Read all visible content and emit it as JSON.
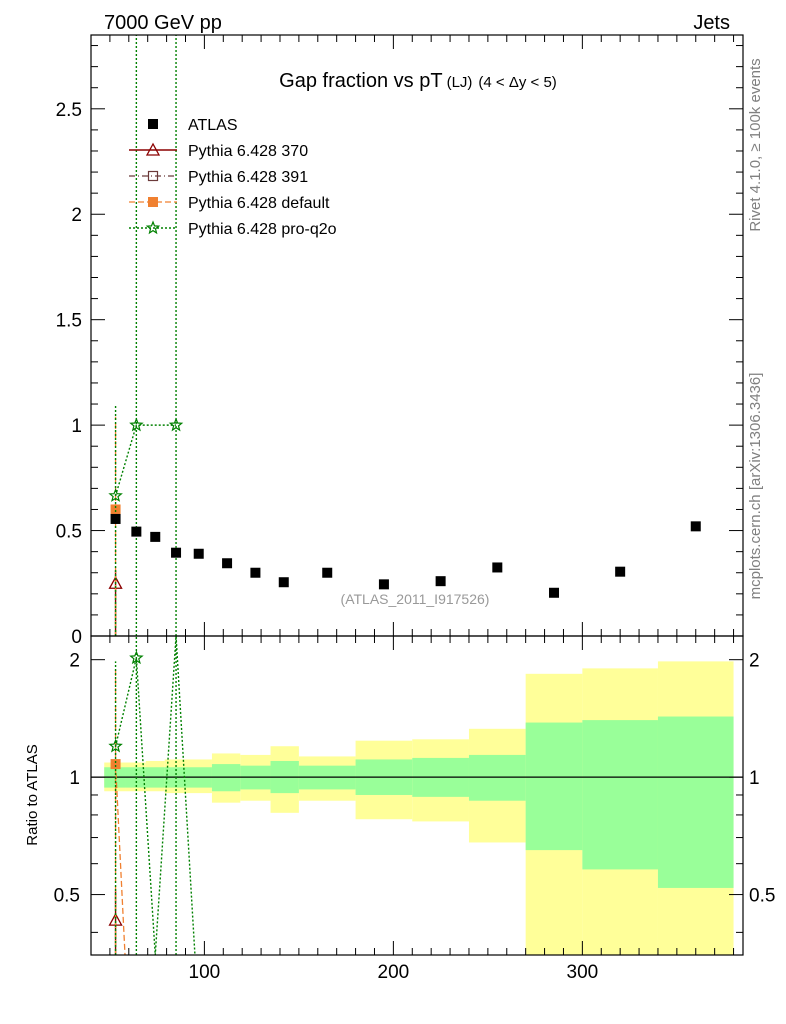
{
  "header": {
    "left": "7000 GeV pp",
    "right": "Jets"
  },
  "side_labels": {
    "top": "Rivet 4.1.0, ≥ 100k events",
    "bottom": "mcplots.cern.ch [arXiv:1306.3436]"
  },
  "chart_data": [
    {
      "type": "scatter",
      "title_main": "Gap fraction vs pT",
      "title_sub": "(LJ)",
      "title_cond": "(4 < Δy < 5)",
      "watermark": "(ATLAS_2011_I917526)",
      "xlim": [
        40,
        385
      ],
      "ylim": [
        0,
        2.85
      ],
      "yticks": [
        0,
        0.5,
        1,
        1.5,
        2,
        2.5
      ],
      "ytick_labels": [
        "0",
        "0.5",
        "1",
        "1.5",
        "2",
        "2.5"
      ],
      "legend_position": "top-left",
      "series": [
        {
          "name": "ATLAS",
          "marker": "square",
          "color": "#000000",
          "x": [
            53,
            64,
            74,
            85,
            97,
            112,
            127,
            142,
            165,
            195,
            225,
            255,
            285,
            320,
            360
          ],
          "y": [
            0.555,
            0.495,
            0.47,
            0.395,
            0.39,
            0.345,
            0.3,
            0.255,
            0.3,
            0.245,
            0.26,
            0.325,
            0.205,
            0.305,
            0.52
          ]
        },
        {
          "name": "Pythia 6.428 370",
          "marker": "triangle-open",
          "color": "#8b0000",
          "x": [
            53
          ],
          "y": [
            0.25
          ],
          "yerr_low": [
            0.25
          ],
          "yerr_high": [
            0.06
          ]
        },
        {
          "name": "Pythia 6.428 391",
          "marker": "square-open",
          "color": "#6b3a3a",
          "x": [],
          "y": []
        },
        {
          "name": "Pythia 6.428 default",
          "marker": "square",
          "color": "#f08030",
          "x": [
            53
          ],
          "y": [
            0.6
          ],
          "yerr_low": [
            0.6
          ],
          "yerr_high": [
            0.44
          ]
        },
        {
          "name": "Pythia 6.428 pro-q2o",
          "marker": "star",
          "color": "#008000",
          "x": [
            53,
            64,
            85
          ],
          "y": [
            0.665,
            1.0,
            1.0
          ],
          "yerr_low": [
            0.665,
            1.0,
            1.0
          ],
          "yerr_high": [
            0.43,
            1.85,
            1.85
          ]
        }
      ]
    },
    {
      "type": "ratio",
      "ylabel": "Ratio to ATLAS",
      "xlabel": "",
      "xlim": [
        40,
        385
      ],
      "ylim": [
        0.35,
        2.3
      ],
      "xticks": [
        100,
        200,
        300
      ],
      "xtick_labels": [
        "100",
        "200",
        "300"
      ],
      "yticks": [
        0.5,
        1,
        2
      ],
      "ytick_labels": [
        "0.5",
        "1",
        "2"
      ],
      "bin_edges": [
        47,
        58,
        69,
        79,
        90,
        104,
        119,
        135,
        150,
        180,
        210,
        240,
        270,
        300,
        340,
        380
      ],
      "band_stat": {
        "low": [
          0.94,
          0.94,
          0.94,
          0.94,
          0.94,
          0.92,
          0.93,
          0.91,
          0.93,
          0.9,
          0.89,
          0.87,
          0.65,
          0.58,
          0.52
        ],
        "high": [
          1.06,
          1.06,
          1.06,
          1.06,
          1.06,
          1.08,
          1.07,
          1.1,
          1.07,
          1.11,
          1.12,
          1.14,
          1.38,
          1.4,
          1.43
        ]
      },
      "band_total": {
        "low": [
          0.92,
          0.92,
          0.92,
          0.91,
          0.91,
          0.86,
          0.87,
          0.81,
          0.87,
          0.78,
          0.77,
          0.68,
          0.35,
          0.35,
          0.35
        ],
        "high": [
          1.09,
          1.09,
          1.1,
          1.11,
          1.11,
          1.15,
          1.14,
          1.2,
          1.13,
          1.24,
          1.25,
          1.33,
          1.84,
          1.9,
          1.98
        ]
      },
      "series": [
        {
          "name": "Pythia 6.428 370",
          "color": "#8b0000",
          "x": [
            53
          ],
          "y": [
            0.43
          ],
          "yerr_low": [
            0.43
          ],
          "yerr_high": [
            0.08
          ]
        },
        {
          "name": "Pythia 6.428 default",
          "color": "#f08030",
          "x": [
            53,
            58
          ],
          "y": [
            1.08,
            0.35
          ],
          "yerr_low": [
            1.08,
            0.0
          ],
          "yerr_high": [
            0.8,
            0.0
          ]
        },
        {
          "name": "Pythia 6.428 pro-q2o",
          "color": "#008000",
          "x": [
            53,
            64,
            74,
            85,
            95
          ],
          "y": [
            1.2,
            2.02,
            0.35,
            2.3,
            0.35
          ],
          "yerr_low": [
            1.2,
            2.02,
            0.0,
            2.3,
            0.0
          ],
          "yerr_high": [
            0.78,
            0.6,
            0.0,
            0.0,
            0.0
          ]
        }
      ]
    }
  ]
}
